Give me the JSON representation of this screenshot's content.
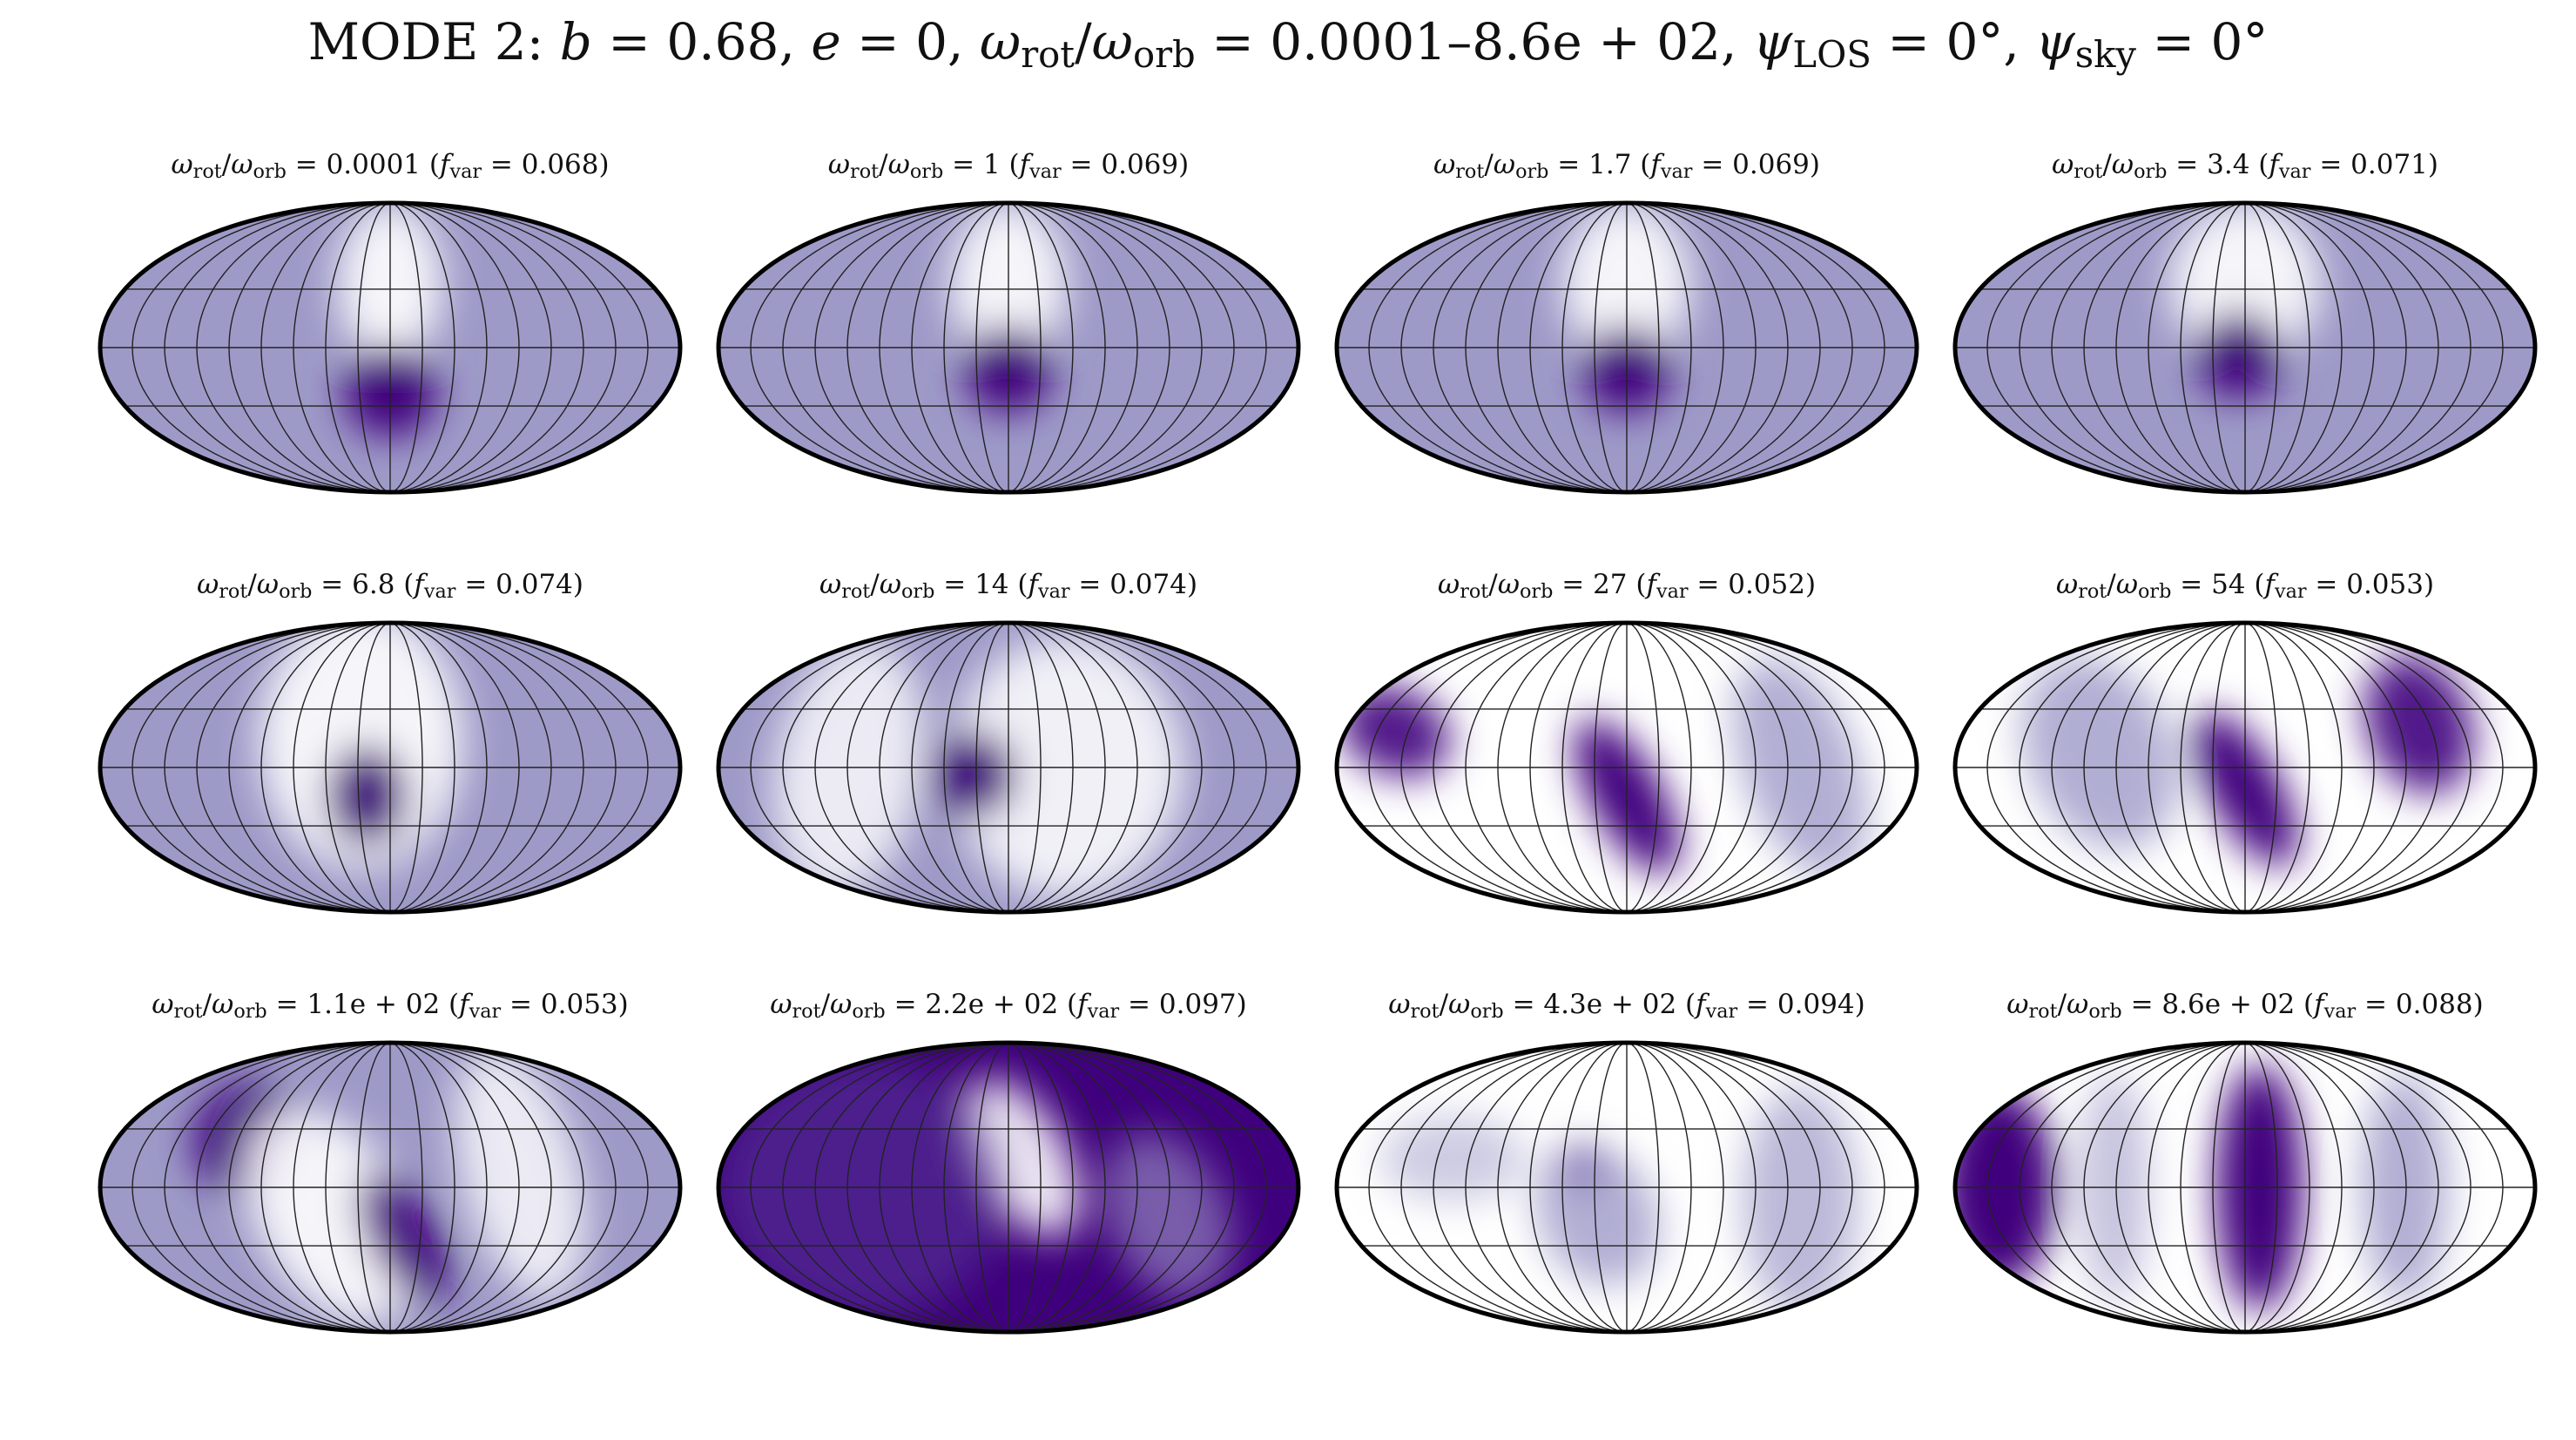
{
  "chart_data": {
    "type": "heatmap",
    "title": {
      "mode": "MODE 2:",
      "b": "0.68",
      "e": "0",
      "ratio_range": "0.0001–8.6e + 02",
      "psi_los": "0°",
      "psi_sky": "0°"
    },
    "projection": "mollweide",
    "colormap": "Purples",
    "colors": {
      "low": "#ffffff",
      "mid": "#9e9ac8",
      "high": "#3f007d",
      "graticule": "#222222",
      "outline": "#000000"
    },
    "grid": true,
    "layout": {
      "rows": 3,
      "cols": 4
    },
    "panels": [
      {
        "ratio": "0.0001",
        "fvar": "0.068"
      },
      {
        "ratio": "1",
        "fvar": "0.069"
      },
      {
        "ratio": "1.7",
        "fvar": "0.069"
      },
      {
        "ratio": "3.4",
        "fvar": "0.071"
      },
      {
        "ratio": "6.8",
        "fvar": "0.074"
      },
      {
        "ratio": "14",
        "fvar": "0.074"
      },
      {
        "ratio": "27",
        "fvar": "0.052"
      },
      {
        "ratio": "54",
        "fvar": "0.053"
      },
      {
        "ratio": "1.1e + 02",
        "fvar": "0.053"
      },
      {
        "ratio": "2.2e + 02",
        "fvar": "0.097"
      },
      {
        "ratio": "4.3e + 02",
        "fvar": "0.094"
      },
      {
        "ratio": "8.6e + 02",
        "fvar": "0.088"
      }
    ]
  }
}
